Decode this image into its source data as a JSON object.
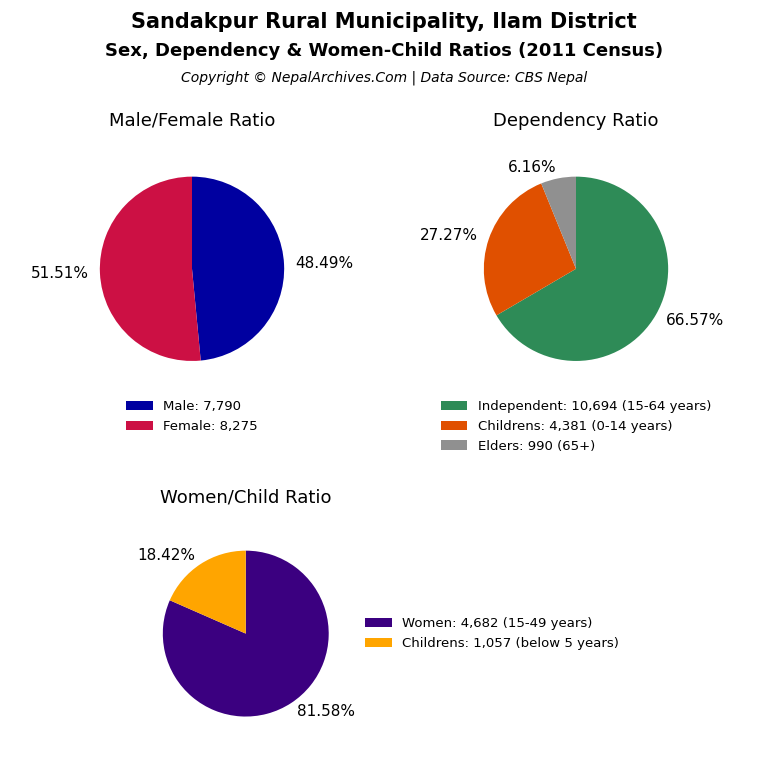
{
  "title": "Sandakpur Rural Municipality, Ilam District",
  "subtitle": "Sex, Dependency & Women-Child Ratios (2011 Census)",
  "annotations": [
    "Copyright © NepalArchives.Com | Data Source: CBS Nepal"
  ],
  "chart_data": [
    {
      "type": "pie",
      "title": "Male/Female Ratio",
      "categories": [
        "Male: 7,790",
        "Female: 8,275"
      ],
      "values": [
        48.49,
        51.51
      ],
      "value_labels": [
        "48.49%",
        "51.51%"
      ],
      "colors": [
        "#0000A0",
        "#CC1044"
      ],
      "data_labels": true,
      "legend": "upper center"
    },
    {
      "type": "pie",
      "title": "Dependency Ratio",
      "categories": [
        "Independent: 10,694 (15-64 years)",
        "Childrens: 4,381 (0-14 years)",
        "Elders: 990 (65+)"
      ],
      "values": [
        66.57,
        27.27,
        6.16
      ],
      "value_labels": [
        "66.57%",
        "27.27%",
        "6.16%"
      ],
      "colors": [
        "#2E8B57",
        "#E05000",
        "#909090"
      ],
      "data_labels": true,
      "legend": "upper center"
    },
    {
      "type": "pie",
      "title": "Women/Child Ratio",
      "categories": [
        "Women: 4,682 (15-49 years)",
        "Childrens: 1,057 (below 5 years)"
      ],
      "values": [
        81.58,
        18.42
      ],
      "value_labels": [
        "81.58%",
        "18.42%"
      ],
      "colors": [
        "#3B0080",
        "#FFA500"
      ],
      "data_labels": true,
      "legend": "center left"
    }
  ]
}
